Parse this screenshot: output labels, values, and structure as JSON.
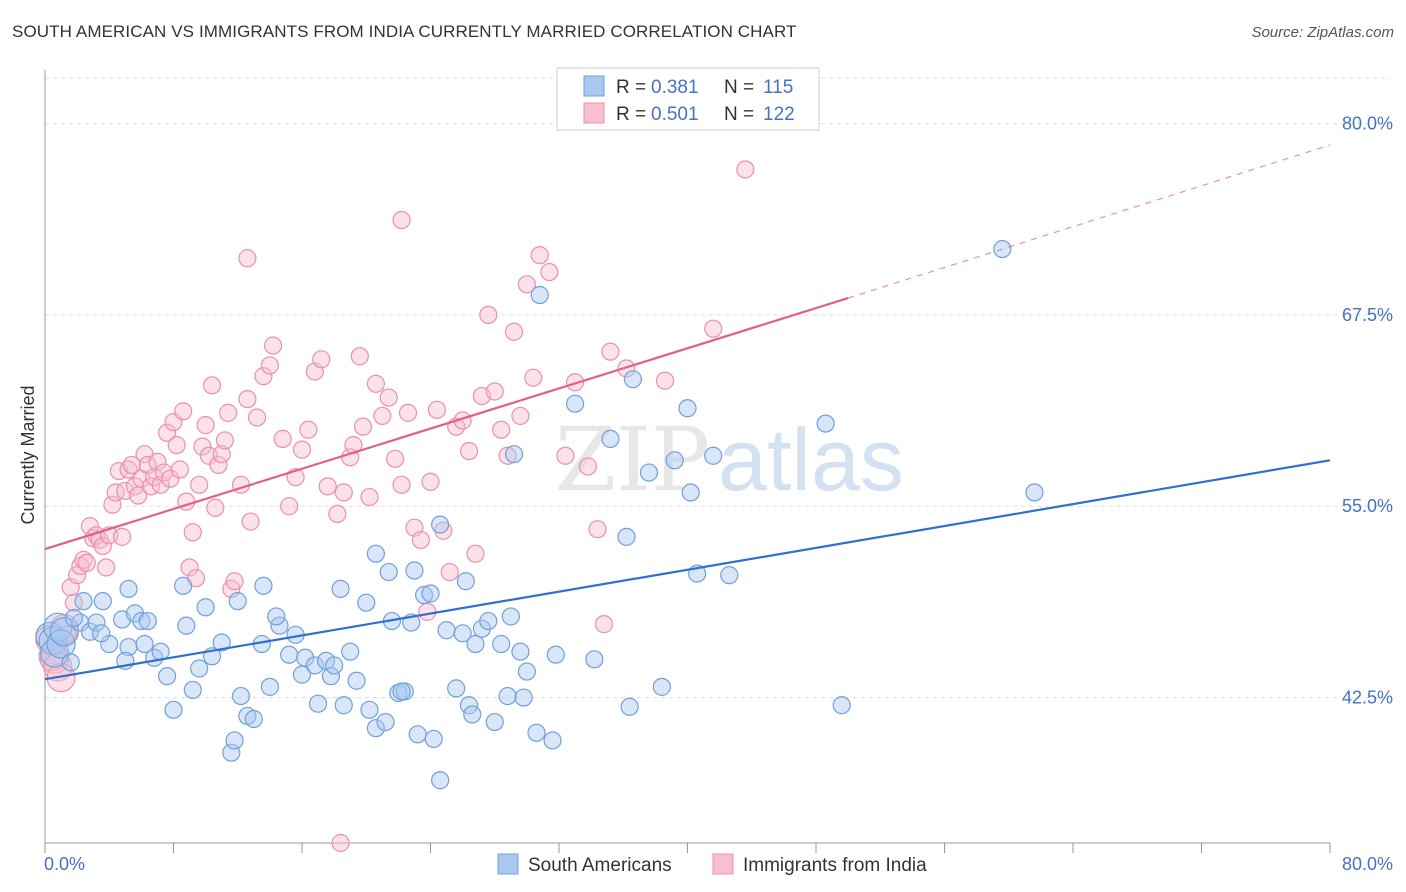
{
  "title": "SOUTH AMERICAN VS IMMIGRANTS FROM INDIA CURRENTLY MARRIED CORRELATION CHART",
  "source": "Source: ZipAtlas.com",
  "watermark": {
    "zip": "ZIP",
    "atlas": "atlas"
  },
  "colors": {
    "blue_fill": "#a9c8f0",
    "blue_stroke": "#6fa0dd",
    "blue_line": "#2f6fce",
    "pink_fill": "#f7bfd0",
    "pink_stroke": "#ec8fab",
    "pink_line": "#e0608b",
    "tick_text": "#4472c4",
    "grid": "#dddddd"
  },
  "legend": {
    "rows": [
      {
        "r_label": "R = ",
        "r_value": "0.381",
        "n_label": "N = ",
        "n_value": "115"
      },
      {
        "r_label": "R = ",
        "r_value": "0.501",
        "n_label": "N = ",
        "n_value": "122"
      }
    ]
  },
  "bottom_legend": [
    "South Americans",
    "Immigrants from India"
  ],
  "chart_data": {
    "type": "scatter",
    "ylabel": "Currently Married",
    "x_tick_labels": [
      "0.0%",
      "80.0%"
    ],
    "y_tick_labels": [
      "42.5%",
      "55.0%",
      "67.5%",
      "80.0%"
    ],
    "y_ticks": [
      42.5,
      55.0,
      67.5,
      80.0
    ],
    "xlim": [
      0,
      80
    ],
    "ylim": [
      33,
      83.5
    ],
    "grid": true,
    "series": [
      {
        "name": "South Americans",
        "R": 0.381,
        "N": 115,
        "trend": {
          "x0": 0,
          "y0": 43.7,
          "x1": 80,
          "y1": 58.0
        },
        "points": [
          [
            0.3,
            46.5
          ],
          [
            0.5,
            46.2
          ],
          [
            0.6,
            45.4
          ],
          [
            0.8,
            47.1
          ],
          [
            1.0,
            46.0
          ],
          [
            1.2,
            46.8
          ],
          [
            1.6,
            44.8
          ],
          [
            2.2,
            47.4
          ],
          [
            2.4,
            48.8
          ],
          [
            2.8,
            46.8
          ],
          [
            3.2,
            47.4
          ],
          [
            3.6,
            48.8
          ],
          [
            4.0,
            46.0
          ],
          [
            4.8,
            47.6
          ],
          [
            5.2,
            49.6
          ],
          [
            5.6,
            48.0
          ],
          [
            6.0,
            47.5
          ],
          [
            5.2,
            45.8
          ],
          [
            6.4,
            47.5
          ],
          [
            6.8,
            45.1
          ],
          [
            7.2,
            45.5
          ],
          [
            7.6,
            43.9
          ],
          [
            8.0,
            41.7
          ],
          [
            8.8,
            47.2
          ],
          [
            9.6,
            44.4
          ],
          [
            10.0,
            48.4
          ],
          [
            10.4,
            45.2
          ],
          [
            11.0,
            46.1
          ],
          [
            11.6,
            38.9
          ],
          [
            11.8,
            39.7
          ],
          [
            12.2,
            42.6
          ],
          [
            12.6,
            41.3
          ],
          [
            13.0,
            41.1
          ],
          [
            13.5,
            46.0
          ],
          [
            14.0,
            43.2
          ],
          [
            14.6,
            47.2
          ],
          [
            15.2,
            45.3
          ],
          [
            15.6,
            46.6
          ],
          [
            16.2,
            45.1
          ],
          [
            16.8,
            44.6
          ],
          [
            17.0,
            42.1
          ],
          [
            17.5,
            44.9
          ],
          [
            17.8,
            43.9
          ],
          [
            18.0,
            44.6
          ],
          [
            18.6,
            42.0
          ],
          [
            19.0,
            45.5
          ],
          [
            19.4,
            43.6
          ],
          [
            20.0,
            48.7
          ],
          [
            20.2,
            41.7
          ],
          [
            20.6,
            40.5
          ],
          [
            21.2,
            40.9
          ],
          [
            21.6,
            47.5
          ],
          [
            22.0,
            42.8
          ],
          [
            22.4,
            42.9
          ],
          [
            22.8,
            47.4
          ],
          [
            23.2,
            40.1
          ],
          [
            23.6,
            49.2
          ],
          [
            24.0,
            49.3
          ],
          [
            24.2,
            39.8
          ],
          [
            24.6,
            37.1
          ],
          [
            25.0,
            46.9
          ],
          [
            25.6,
            43.1
          ],
          [
            26.0,
            46.7
          ],
          [
            26.4,
            42.0
          ],
          [
            26.6,
            41.4
          ],
          [
            26.8,
            46.0
          ],
          [
            27.2,
            47.0
          ],
          [
            27.6,
            47.5
          ],
          [
            28.0,
            40.9
          ],
          [
            28.4,
            46.0
          ],
          [
            28.8,
            42.6
          ],
          [
            29.0,
            47.8
          ],
          [
            29.6,
            45.5
          ],
          [
            29.8,
            42.5
          ],
          [
            30.0,
            44.2
          ],
          [
            30.6,
            40.2
          ],
          [
            31.6,
            39.7
          ],
          [
            31.8,
            45.3
          ],
          [
            33.0,
            61.7
          ],
          [
            35.2,
            59.4
          ],
          [
            36.2,
            53.0
          ],
          [
            36.4,
            41.9
          ],
          [
            38.4,
            43.2
          ],
          [
            40.0,
            61.4
          ],
          [
            40.6,
            50.6
          ],
          [
            41.6,
            58.3
          ],
          [
            42.6,
            50.5
          ],
          [
            48.6,
            60.4
          ],
          [
            49.6,
            42.0
          ],
          [
            59.6,
            71.8
          ],
          [
            61.6,
            55.9
          ],
          [
            1.8,
            47.7
          ],
          [
            3.5,
            46.7
          ],
          [
            5.0,
            44.9
          ],
          [
            6.2,
            46.0
          ],
          [
            8.6,
            49.8
          ],
          [
            9.2,
            43.0
          ],
          [
            12.0,
            48.8
          ],
          [
            13.6,
            49.8
          ],
          [
            14.4,
            47.8
          ],
          [
            16.0,
            44.0
          ],
          [
            18.4,
            49.6
          ],
          [
            20.6,
            51.9
          ],
          [
            21.4,
            50.7
          ],
          [
            23.0,
            50.8
          ],
          [
            24.6,
            53.8
          ],
          [
            26.2,
            50.1
          ],
          [
            29.2,
            58.4
          ],
          [
            30.8,
            68.8
          ],
          [
            36.6,
            63.3
          ],
          [
            37.6,
            57.2
          ],
          [
            39.2,
            58.0
          ],
          [
            40.2,
            55.9
          ],
          [
            22.2,
            42.9
          ],
          [
            34.2,
            45.0
          ]
        ]
      },
      {
        "name": "Immigrants from India",
        "R": 0.501,
        "N": 122,
        "trend": {
          "x0": 0,
          "y0": 52.2,
          "x1": 50,
          "y1": 68.6
        },
        "trend_dash_to": {
          "x": 80,
          "y": 78.6
        },
        "points": [
          [
            0.3,
            46.3
          ],
          [
            0.5,
            45.2
          ],
          [
            0.6,
            45.0
          ],
          [
            0.8,
            44.5
          ],
          [
            1.0,
            43.8
          ],
          [
            1.2,
            47.0
          ],
          [
            1.4,
            46.6
          ],
          [
            1.6,
            49.7
          ],
          [
            1.8,
            48.7
          ],
          [
            2.0,
            50.5
          ],
          [
            2.2,
            51.1
          ],
          [
            2.4,
            51.5
          ],
          [
            2.6,
            51.3
          ],
          [
            2.8,
            53.7
          ],
          [
            3.0,
            52.9
          ],
          [
            3.2,
            53.1
          ],
          [
            3.4,
            52.8
          ],
          [
            3.6,
            52.4
          ],
          [
            3.8,
            51.0
          ],
          [
            4.0,
            53.1
          ],
          [
            4.2,
            55.1
          ],
          [
            4.4,
            55.9
          ],
          [
            4.6,
            57.3
          ],
          [
            4.8,
            53.0
          ],
          [
            5.0,
            56.0
          ],
          [
            5.2,
            57.4
          ],
          [
            5.4,
            57.7
          ],
          [
            5.6,
            56.3
          ],
          [
            5.8,
            55.7
          ],
          [
            6.0,
            56.8
          ],
          [
            6.2,
            58.4
          ],
          [
            6.4,
            57.7
          ],
          [
            6.6,
            56.3
          ],
          [
            6.8,
            56.9
          ],
          [
            7.0,
            57.9
          ],
          [
            7.2,
            56.4
          ],
          [
            7.4,
            57.2
          ],
          [
            7.6,
            59.8
          ],
          [
            7.8,
            56.8
          ],
          [
            8.0,
            60.5
          ],
          [
            8.2,
            59.0
          ],
          [
            8.4,
            57.4
          ],
          [
            8.6,
            61.2
          ],
          [
            8.8,
            55.3
          ],
          [
            9.0,
            51.0
          ],
          [
            9.2,
            53.3
          ],
          [
            9.4,
            50.3
          ],
          [
            9.6,
            56.4
          ],
          [
            9.8,
            58.9
          ],
          [
            10.0,
            60.3
          ],
          [
            10.2,
            58.3
          ],
          [
            10.4,
            62.9
          ],
          [
            10.6,
            54.9
          ],
          [
            10.8,
            57.7
          ],
          [
            11.0,
            58.4
          ],
          [
            11.2,
            59.3
          ],
          [
            11.4,
            61.1
          ],
          [
            11.6,
            49.6
          ],
          [
            11.8,
            50.1
          ],
          [
            12.2,
            56.4
          ],
          [
            12.6,
            62.0
          ],
          [
            12.8,
            54.0
          ],
          [
            13.2,
            60.8
          ],
          [
            13.6,
            63.5
          ],
          [
            14.0,
            64.2
          ],
          [
            14.2,
            65.5
          ],
          [
            14.8,
            59.4
          ],
          [
            15.2,
            55.0
          ],
          [
            15.6,
            56.9
          ],
          [
            16.0,
            58.7
          ],
          [
            16.4,
            60.0
          ],
          [
            16.8,
            63.8
          ],
          [
            17.2,
            64.6
          ],
          [
            17.6,
            56.3
          ],
          [
            18.2,
            54.5
          ],
          [
            18.6,
            55.9
          ],
          [
            19.0,
            58.2
          ],
          [
            19.2,
            59.0
          ],
          [
            19.6,
            64.8
          ],
          [
            19.8,
            60.2
          ],
          [
            20.2,
            55.6
          ],
          [
            20.6,
            63.0
          ],
          [
            21.0,
            60.9
          ],
          [
            21.4,
            62.1
          ],
          [
            21.8,
            58.1
          ],
          [
            22.2,
            56.4
          ],
          [
            22.6,
            61.1
          ],
          [
            23.0,
            53.6
          ],
          [
            23.4,
            52.8
          ],
          [
            23.8,
            48.1
          ],
          [
            24.0,
            56.6
          ],
          [
            24.4,
            61.3
          ],
          [
            24.8,
            53.4
          ],
          [
            25.2,
            50.7
          ],
          [
            25.6,
            60.2
          ],
          [
            26.0,
            60.6
          ],
          [
            26.4,
            58.6
          ],
          [
            26.8,
            51.9
          ],
          [
            27.2,
            62.2
          ],
          [
            27.6,
            67.5
          ],
          [
            28.0,
            62.5
          ],
          [
            28.4,
            60.0
          ],
          [
            28.8,
            58.3
          ],
          [
            29.2,
            66.4
          ],
          [
            29.6,
            60.9
          ],
          [
            30.0,
            69.5
          ],
          [
            30.4,
            63.4
          ],
          [
            30.8,
            71.4
          ],
          [
            31.4,
            70.3
          ],
          [
            32.4,
            58.3
          ],
          [
            33.0,
            63.1
          ],
          [
            33.8,
            57.6
          ],
          [
            34.4,
            53.5
          ],
          [
            34.8,
            47.3
          ],
          [
            35.2,
            65.1
          ],
          [
            36.2,
            64.0
          ],
          [
            38.6,
            63.2
          ],
          [
            41.6,
            66.6
          ],
          [
            12.6,
            71.2
          ],
          [
            18.4,
            33.0
          ],
          [
            22.2,
            73.7
          ],
          [
            43.6,
            77.0
          ]
        ]
      }
    ]
  }
}
